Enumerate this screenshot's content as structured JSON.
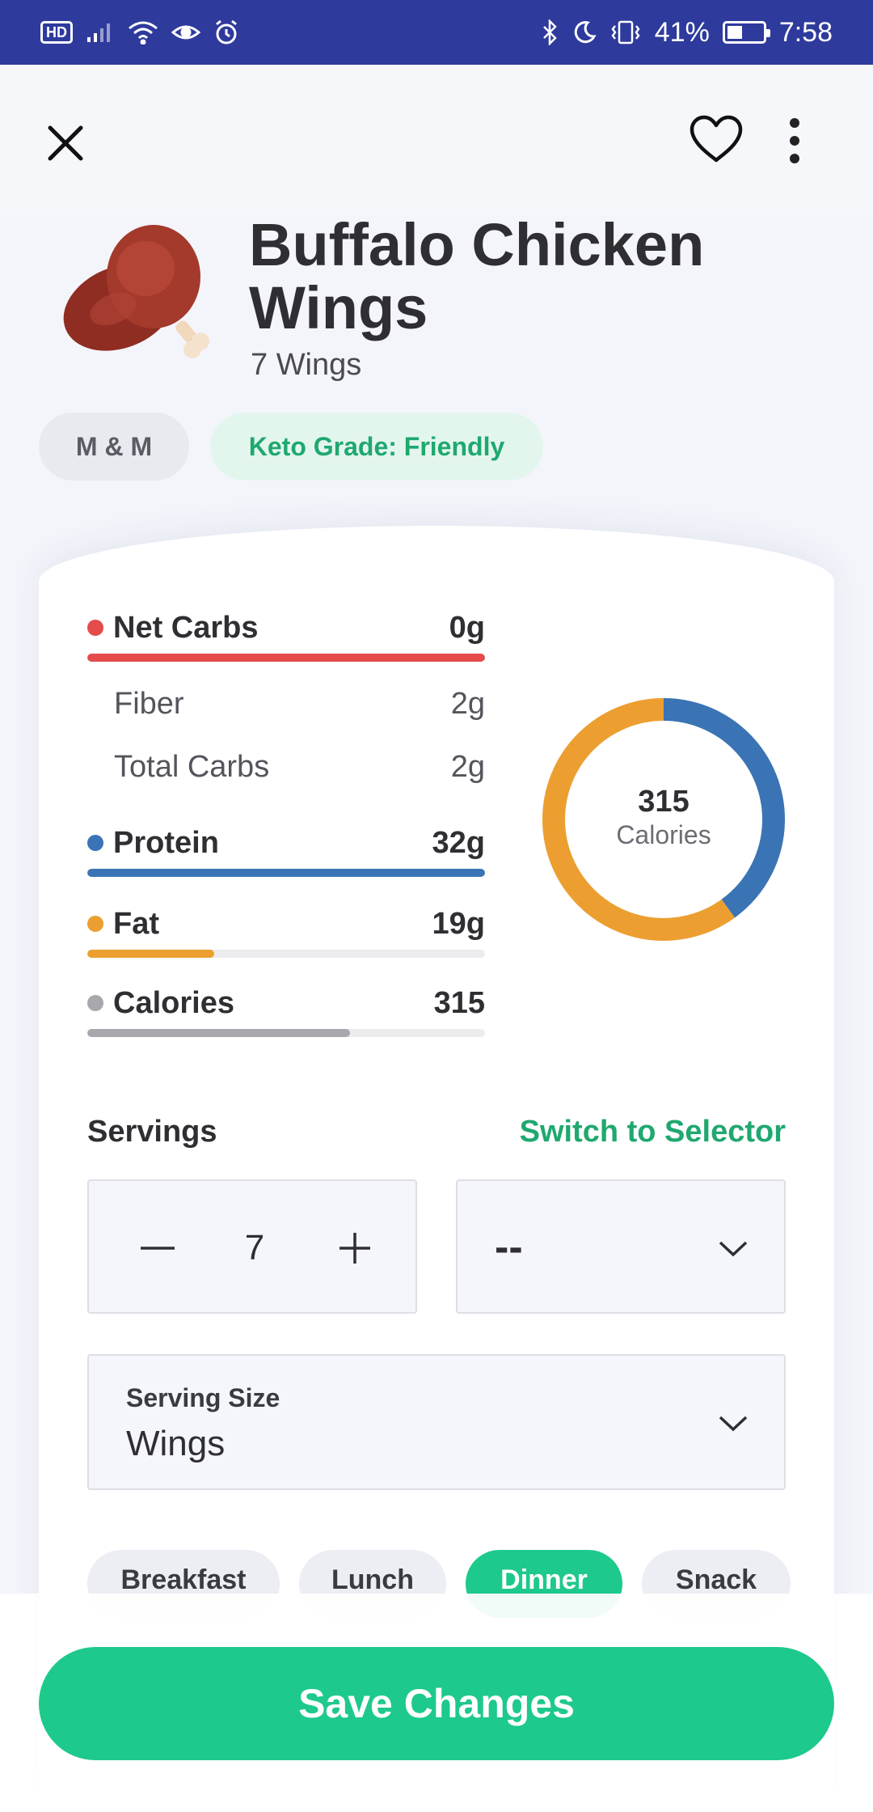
{
  "status_bar": {
    "hd": "HD",
    "battery_percent": "41%",
    "time": "7:58",
    "icons": [
      "signal-icon",
      "wifi-icon",
      "eye-icon",
      "alarm-icon",
      "bluetooth-icon",
      "moon-icon",
      "vibrate-icon",
      "battery-icon"
    ]
  },
  "header": {
    "icons": [
      "close-icon",
      "heart-icon",
      "more-vertical-icon"
    ]
  },
  "food": {
    "title": "Buffalo Chicken Wings",
    "subtitle": "7 Wings",
    "brand_chip": "M & M",
    "keto_chip": "Keto Grade: Friendly"
  },
  "macros": {
    "net_carbs": {
      "label": "Net Carbs",
      "value": "0g",
      "color": "#e44b4b",
      "fill": 1.0
    },
    "fiber": {
      "label": "Fiber",
      "value": "2g"
    },
    "total_carbs": {
      "label": "Total Carbs",
      "value": "2g"
    },
    "protein": {
      "label": "Protein",
      "value": "32g",
      "color": "#3a74b4",
      "fill": 1.0
    },
    "fat": {
      "label": "Fat",
      "value": "19g",
      "color": "#ec9f30",
      "fill": 0.32
    },
    "calories": {
      "label": "Calories",
      "value": "315",
      "color": "#a7a8ad",
      "fill": 0.66
    }
  },
  "donut": {
    "value": "315",
    "label": "Calories",
    "segments": [
      {
        "name": "protein",
        "fraction": 0.4,
        "color": "#3a74b4"
      },
      {
        "name": "fat",
        "fraction": 0.6,
        "color": "#ec9f30"
      }
    ]
  },
  "servings": {
    "label": "Servings",
    "switch_label": "Switch to Selector",
    "count": "7",
    "unit_value": "--"
  },
  "serving_size": {
    "label": "Serving Size",
    "value": "Wings"
  },
  "meals": {
    "options": [
      "Breakfast",
      "Lunch",
      "Dinner",
      "Snack"
    ],
    "selected": "Dinner"
  },
  "save_button": "Save Changes",
  "colors": {
    "accent": "#1ec98c",
    "status_bar": "#2e3a9c"
  }
}
